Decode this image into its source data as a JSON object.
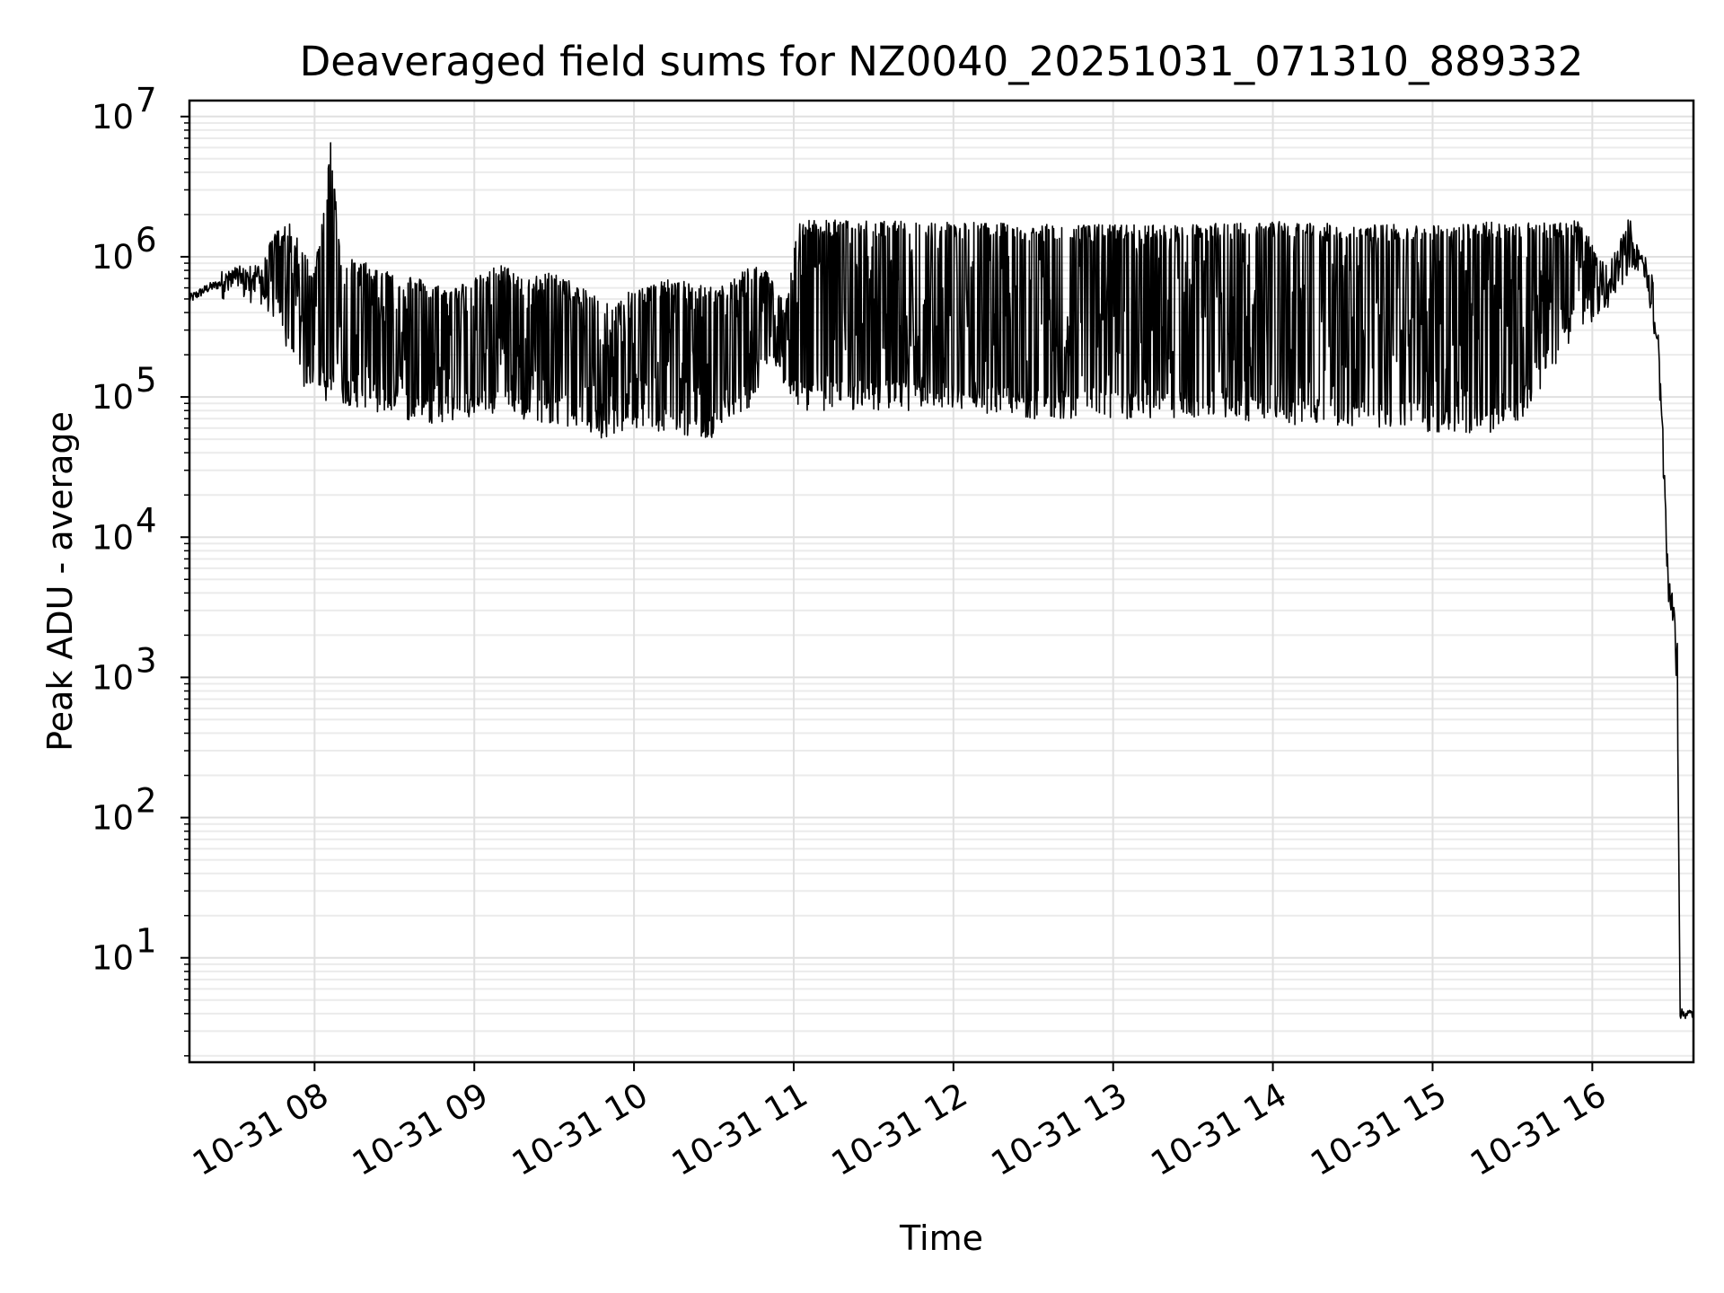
{
  "chart_data": {
    "type": "line",
    "title": "Deaveraged field sums for NZ0040_20251031_071310_889332",
    "xlabel": "Time",
    "ylabel": "Peak ADU - average",
    "yscale": "log",
    "ylim": [
      1.8,
      13000000
    ],
    "xlim": [
      "2025-10-31 07:13",
      "2025-10-31 16:38"
    ],
    "grid": "both",
    "legend": "none",
    "line_color": "#000000",
    "y_ticks": [
      {
        "value": 10,
        "base": "10",
        "exp": "1"
      },
      {
        "value": 100,
        "base": "10",
        "exp": "2"
      },
      {
        "value": 1000,
        "base": "10",
        "exp": "3"
      },
      {
        "value": 10000,
        "base": "10",
        "exp": "4"
      },
      {
        "value": 100000,
        "base": "10",
        "exp": "5"
      },
      {
        "value": 1000000,
        "base": "10",
        "exp": "6"
      },
      {
        "value": 10000000,
        "base": "10",
        "exp": "7"
      }
    ],
    "x_ticks": [
      {
        "time": "2025-10-31 08:00",
        "label": "10-31 08"
      },
      {
        "time": "2025-10-31 09:00",
        "label": "10-31 09"
      },
      {
        "time": "2025-10-31 10:00",
        "label": "10-31 10"
      },
      {
        "time": "2025-10-31 11:00",
        "label": "10-31 11"
      },
      {
        "time": "2025-10-31 12:00",
        "label": "10-31 12"
      },
      {
        "time": "2025-10-31 13:00",
        "label": "10-31 13"
      },
      {
        "time": "2025-10-31 14:00",
        "label": "10-31 14"
      },
      {
        "time": "2025-10-31 15:00",
        "label": "10-31 15"
      },
      {
        "time": "2025-10-31 16:00",
        "label": "10-31 16"
      }
    ],
    "series": [
      {
        "x": [
          "2025-10-31 07:13",
          "2025-10-31 07:20",
          "2025-10-31 07:30",
          "2025-10-31 07:40",
          "2025-10-31 07:45",
          "2025-10-31 07:50",
          "2025-10-31 07:55",
          "2025-10-31 08:00",
          "2025-10-31 08:06",
          "2025-10-31 08:10",
          "2025-10-31 08:20",
          "2025-10-31 08:30",
          "2025-10-31 08:40",
          "2025-10-31 08:50",
          "2025-10-31 09:00",
          "2025-10-31 09:10",
          "2025-10-31 09:20",
          "2025-10-31 09:30",
          "2025-10-31 09:40",
          "2025-10-31 09:50",
          "2025-10-31 10:00",
          "2025-10-31 10:15",
          "2025-10-31 10:30",
          "2025-10-31 10:45",
          "2025-10-31 10:50",
          "2025-10-31 10:57",
          "2025-10-31 11:02",
          "2025-10-31 11:30",
          "2025-10-31 12:00",
          "2025-10-31 12:30",
          "2025-10-31 13:00",
          "2025-10-31 13:30",
          "2025-10-31 14:00",
          "2025-10-31 14:30",
          "2025-10-31 15:00",
          "2025-10-31 15:30",
          "2025-10-31 15:55",
          "2025-10-31 16:05",
          "2025-10-31 16:10",
          "2025-10-31 16:14",
          "2025-10-31 16:18",
          "2025-10-31 16:21",
          "2025-10-31 16:24",
          "2025-10-31 16:26",
          "2025-10-31 16:28",
          "2025-10-31 16:29",
          "2025-10-31 16:30",
          "2025-10-31 16:32",
          "2025-10-31 16:33",
          "2025-10-31 16:34",
          "2025-10-31 16:36",
          "2025-10-31 16:38"
        ],
        "y": [
          500000,
          600000,
          700000,
          750000,
          600000,
          450000,
          300000,
          250000,
          6500000,
          350000,
          250000,
          200000,
          180000,
          200000,
          220000,
          250000,
          180000,
          200000,
          150000,
          130000,
          170000,
          150000,
          120000,
          400000,
          450000,
          300000,
          1800000,
          1700000,
          1500000,
          1400000,
          1500000,
          1400000,
          1500000,
          1400000,
          1400000,
          1400000,
          1500000,
          600000,
          800000,
          2100000,
          1000000,
          800000,
          300000,
          80000,
          6000,
          4000,
          3500,
          1000,
          4,
          4,
          4,
          4
        ],
        "band_low": [
          420000,
          500000,
          500000,
          450000,
          350000,
          200000,
          120000,
          100000,
          90000,
          90000,
          80000,
          70000,
          65000,
          65000,
          70000,
          75000,
          65000,
          65000,
          55000,
          50000,
          60000,
          55000,
          50000,
          90000,
          150000,
          110000,
          80000,
          80000,
          80000,
          70000,
          70000,
          70000,
          65000,
          60000,
          55000,
          55000,
          300000,
          400000,
          500000,
          800000,
          800000,
          500000,
          200000,
          50000,
          4000,
          3000,
          2500,
          500,
          4,
          4,
          4,
          4
        ],
        "band_high": [
          550000,
          750000,
          850000,
          900000,
          1500000,
          1800000,
          1200000,
          800000,
          6500000,
          1000000,
          900000,
          800000,
          700000,
          600000,
          700000,
          900000,
          700000,
          800000,
          600000,
          500000,
          600000,
          700000,
          600000,
          900000,
          800000,
          500000,
          1850000,
          1800000,
          1800000,
          1700000,
          1700000,
          1700000,
          1800000,
          1700000,
          1700000,
          1800000,
          1800000,
          900000,
          1200000,
          2100000,
          1200000,
          1000000,
          600000,
          120000,
          9000,
          5000,
          4500,
          2000,
          4,
          4,
          4,
          4
        ]
      }
    ]
  }
}
